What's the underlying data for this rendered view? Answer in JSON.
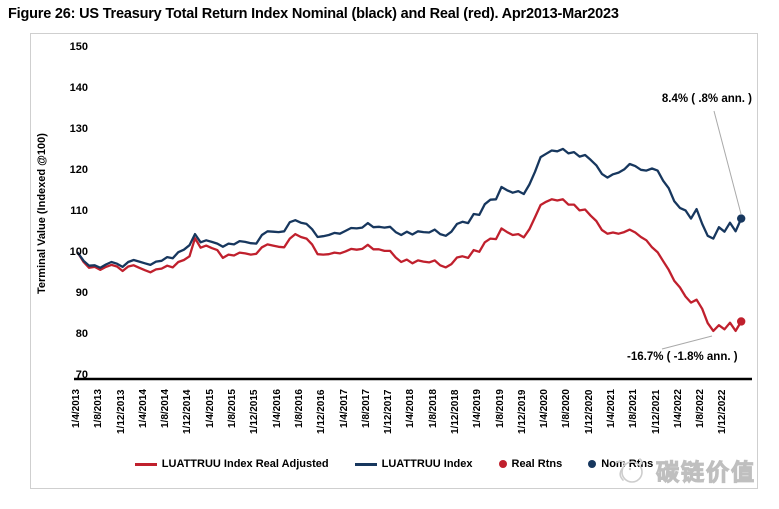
{
  "title": "Figure 26: US Treasury Total Return Index Nominal (black) and Real (red). Apr2013-Mar2023",
  "watermark": {
    "text": "碳链价值",
    "logo": "bird-doodle-logo"
  },
  "chart_data": {
    "type": "line",
    "title": "US Treasury Total Return Index Nominal (black) and Real (red)",
    "period": "Apr2013-Mar2023",
    "ylabel": "Terminal Value (Indexed @100)",
    "ylim": [
      70,
      150
    ],
    "yticks": [
      150,
      140,
      130,
      120,
      110,
      100,
      90,
      80,
      70
    ],
    "grid": false,
    "legend_position": "bottom",
    "x_tick_labels": [
      "1/4/2013",
      "1/8/2013",
      "1/12/2013",
      "1/4/2014",
      "1/8/2014",
      "1/12/2014",
      "1/4/2015",
      "1/8/2015",
      "1/12/2015",
      "1/4/2016",
      "1/8/2016",
      "1/12/2016",
      "1/4/2017",
      "1/8/2017",
      "1/12/2017",
      "1/4/2018",
      "1/8/2018",
      "1/12/2018",
      "1/4/2019",
      "1/8/2019",
      "1/12/2019",
      "1/4/2020",
      "1/8/2020",
      "1/12/2020",
      "1/4/2021",
      "1/8/2021",
      "1/12/2021",
      "1/4/2022",
      "1/8/2022",
      "1/12/2022"
    ],
    "x_tick_every_n_points": 4,
    "series": [
      {
        "name": "LUATTRUU Index Real Adjusted",
        "color": "#c0202d",
        "values": [
          100,
          97.8,
          96.4,
          96.6,
          95.9,
          96.6,
          97.1,
          96.7,
          95.6,
          96.7,
          97,
          96.4,
          95.8,
          95.3,
          96,
          96.2,
          96.9,
          96.5,
          97.8,
          98.3,
          99.2,
          103.6,
          101.3,
          101.8,
          101.2,
          100.7,
          98.8,
          99.6,
          99.4,
          100.1,
          99.9,
          99.6,
          99.8,
          101.4,
          102.1,
          101.8,
          101.5,
          101.4,
          103.5,
          104.6,
          103.9,
          103.5,
          102.1,
          99.7,
          99.6,
          99.7,
          100.1,
          99.9,
          100.4,
          101,
          100.8,
          101,
          102,
          100.9,
          100.9,
          100.5,
          100.5,
          98.9,
          97.8,
          98.4,
          97.5,
          98.2,
          97.9,
          97.7,
          98.2,
          97,
          96.5,
          97.3,
          98.9,
          99.2,
          98.8,
          100.7,
          100.3,
          102.6,
          103.5,
          103.4,
          106,
          105.1,
          104.4,
          104.6,
          103.8,
          105.8,
          108.7,
          111.7,
          112.5,
          113.1,
          112.8,
          113.1,
          111.8,
          111.8,
          110.4,
          110.6,
          109.1,
          107.8,
          105.6,
          104.7,
          105,
          104.7,
          105.1,
          105.7,
          105,
          103.9,
          103.1,
          101.4,
          100.2,
          98,
          95.9,
          93.2,
          91.6,
          89.4,
          87.9,
          88.6,
          86.4,
          82.9,
          81,
          82.4,
          81.4,
          83,
          81,
          83.3
        ]
      },
      {
        "name": "LUATTRUU Index",
        "color": "#17375e",
        "values": [
          100,
          98.1,
          96.9,
          97,
          96.4,
          97.2,
          97.8,
          97.4,
          96.6,
          97.8,
          98.3,
          97.9,
          97.5,
          97.1,
          97.9,
          98.1,
          99,
          98.7,
          100.2,
          100.8,
          101.9,
          104.6,
          102.6,
          103.1,
          102.7,
          102.3,
          101.5,
          102.3,
          102.1,
          102.9,
          102.7,
          102.4,
          102.3,
          104.4,
          105.3,
          105.2,
          105.1,
          105.3,
          107.5,
          108,
          107.4,
          107.1,
          105.8,
          103.9,
          104.1,
          104.4,
          104.9,
          104.7,
          105.4,
          106.1,
          106,
          106.2,
          107.3,
          106.3,
          106.4,
          106.2,
          106.4,
          105.1,
          104.4,
          105.2,
          104.5,
          105.3,
          105.1,
          105,
          105.7,
          104.6,
          104.2,
          105.2,
          107.1,
          107.6,
          107.3,
          109.5,
          109.3,
          111.9,
          113,
          113.1,
          116.1,
          115.3,
          114.7,
          115.1,
          114.4,
          116.7,
          119.8,
          123.4,
          124.2,
          125,
          124.8,
          125.4,
          124.3,
          124.6,
          123.5,
          123.9,
          122.7,
          121.4,
          119.3,
          118.4,
          119.2,
          119.6,
          120.4,
          121.7,
          121.2,
          120.3,
          120.1,
          120.6,
          120.1,
          117.6,
          115.8,
          112.6,
          111,
          110.4,
          108.4,
          110.7,
          107.1,
          104.2,
          103.5,
          106.3,
          105.2,
          107.4,
          105.3,
          108.4
        ]
      }
    ],
    "end_markers": [
      {
        "name": "Real Rtns",
        "color": "#c0202d",
        "end_value": 83.3
      },
      {
        "name": "Nom Rtns",
        "color": "#17375e",
        "end_value": 108.4
      }
    ],
    "annotations": [
      {
        "id": "nominal-total-return",
        "text": "8.4% ( .8% ann. )"
      },
      {
        "id": "real-total-return",
        "text": "-16.7% ( -1.8% ann. )"
      }
    ]
  }
}
